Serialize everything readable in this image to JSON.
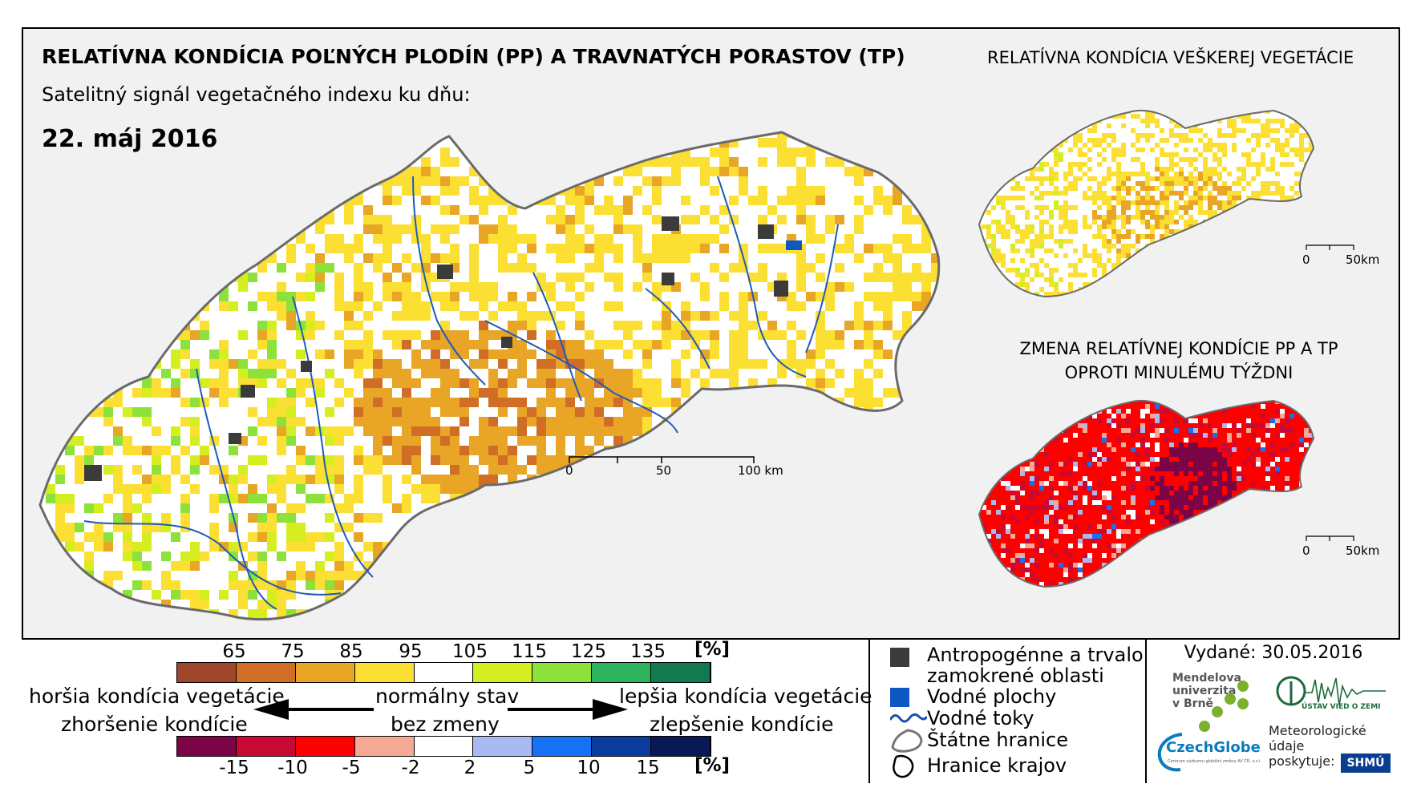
{
  "map_data": {
    "country": "Slovensko",
    "main_map": {
      "title": "RELATÍVNA KONDÍCIA POĽNÝCH PLODÍN (PP) A TRAVNATÝCH PORASTOV (TP)",
      "subtitle": "Satelitný signál vegetačného indexu ku dňu:",
      "date": "22. máj 2016",
      "scale_labels": [
        "0",
        "50",
        "100 km"
      ]
    },
    "inset_total": {
      "title": "RELATÍVNA KONDÍCIA VEŠKEREJ VEGETÁCIE",
      "scale_labels": [
        "0",
        "50km"
      ]
    },
    "inset_change": {
      "title_line1": "ZMENA RELATÍVNEJ KONDÍCIE PP A TP",
      "title_line2": "OPROTI MINULÉMU TÝŽDNI",
      "scale_labels": [
        "0",
        "50km"
      ]
    },
    "condition_scale": {
      "ticks": [
        "65",
        "75",
        "85",
        "95",
        "105",
        "115",
        "125",
        "135"
      ],
      "unit": "[%]",
      "colors": [
        "#a0462a",
        "#d06d27",
        "#e8a526",
        "#fbdf33",
        "#ffffff",
        "#d4ee1f",
        "#8ce23a",
        "#2db35b",
        "#117a50"
      ]
    },
    "change_scale": {
      "ticks": [
        "-15",
        "-10",
        "-5",
        "-2",
        "2",
        "5",
        "10",
        "15"
      ],
      "unit": "[%]",
      "colors": [
        "#7a0446",
        "#c70a33",
        "#ff0000",
        "#f5a894",
        "#ffffff",
        "#a9baf2",
        "#1671f5",
        "#0c3b9e",
        "#081955"
      ]
    },
    "labels": {
      "worse_condition": "horšia kondícia vegetácie",
      "worse_change": "zhoršenie kondície",
      "normal": "normálny stav",
      "no_change": "bez zmeny",
      "better_condition": "lepšia kondícia vegetácie",
      "better_change": "zlepšenie kondície"
    },
    "legend": [
      {
        "label_line1": "Antropogénne a trvalo",
        "label_line2": "zamokrené oblasti",
        "color": "#3b3b3b",
        "icon": "gray-square-icon"
      },
      {
        "label": "Vodné plochy",
        "color": "#0f57c2",
        "icon": "blue-square-icon"
      },
      {
        "label": "Vodné toky",
        "color": "#1a4fb0",
        "icon": "wavy-line-icon"
      },
      {
        "label": "Štátne hranice",
        "color": "#666666",
        "icon": "border-outline-icon"
      },
      {
        "label": "Hranice krajov",
        "color": "#000000",
        "icon": "region-outline-icon"
      }
    ],
    "issued": "Vydané: 30.05.2016",
    "logos": {
      "mendel_line1": "Mendelova",
      "mendel_line2": "univerzita",
      "mendel_line3": "v Brně",
      "czechglobe": "CzechGlobe",
      "czechglobe_tagline": "Centrum výzkumu globální změny AV ČR, v.v.i.",
      "uvoz": "ÚSTAV VIED O ZEMI",
      "meteo_line1": "Meteorologické",
      "meteo_line2": "údaje",
      "meteo_line3": "poskytuje:",
      "shmu": "SHMÚ"
    }
  }
}
